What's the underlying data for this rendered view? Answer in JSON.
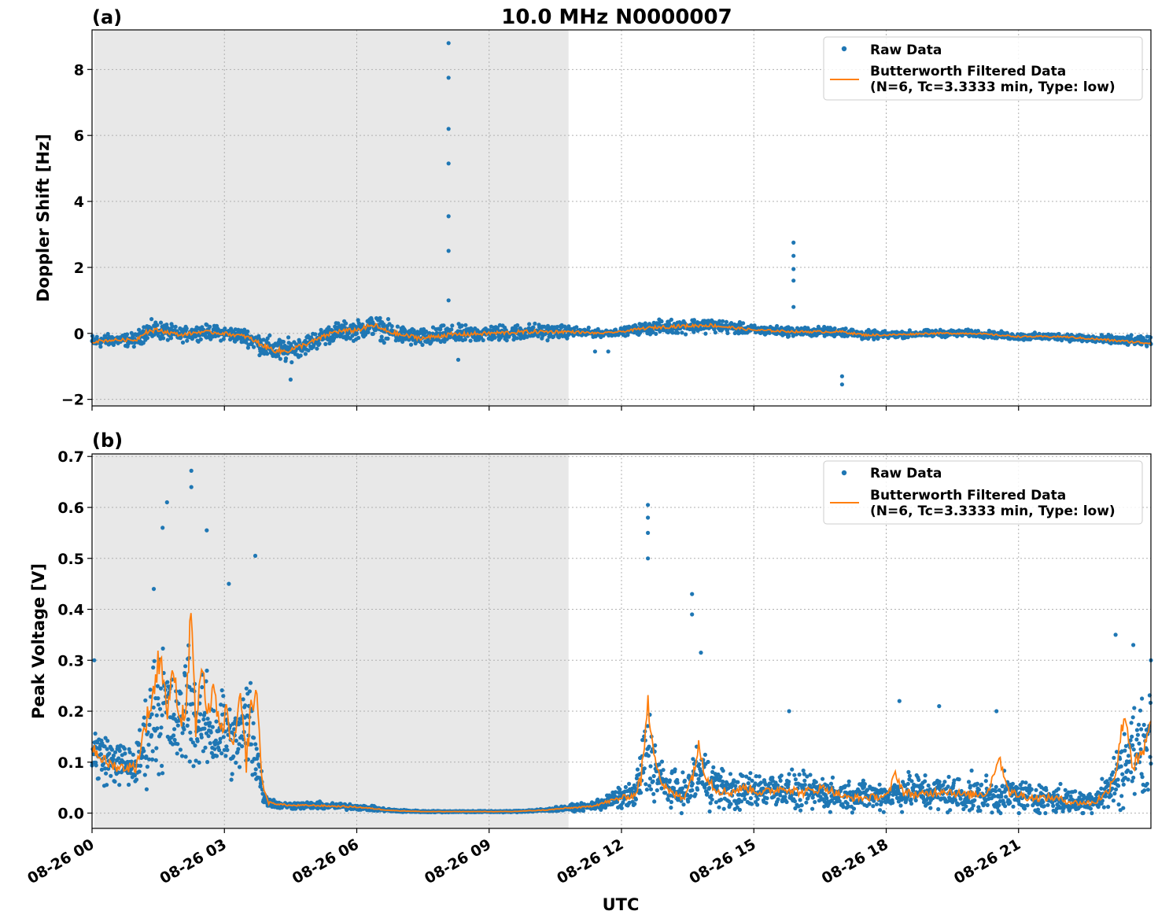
{
  "figure": {
    "title": "10.0 MHz N0000007",
    "xlabel": "UTC",
    "colors": {
      "raw": "#1f77b4",
      "filtered": "#ff7f0e",
      "night_shade": "#e8e8e8",
      "grid": "#b0b0b0"
    }
  },
  "chart_data": [
    {
      "type": "scatter",
      "panel_label": "(a)",
      "title": "10.0 MHz N0000007",
      "xlabel": "",
      "ylabel": "Doppler Shift [Hz]",
      "xlim_hours": [
        0,
        24
      ],
      "ylim": [
        -2.2,
        9.2
      ],
      "yticks": [
        -2,
        0,
        2,
        4,
        6,
        8
      ],
      "ytick_labels": [
        "−2",
        "0",
        "2",
        "4",
        "6",
        "8"
      ],
      "xticks_hours": [
        0,
        3,
        6,
        9,
        12,
        15,
        18,
        21
      ],
      "xtick_labels": [
        "08-26 00",
        "08-26 03",
        "08-26 06",
        "08-26 09",
        "08-26 12",
        "08-26 15",
        "08-26 18",
        "08-26 21"
      ],
      "grid": true,
      "shaded_region_hours": [
        0.05,
        10.8
      ],
      "legend": {
        "placement": "top-right",
        "entries": [
          "Raw Data",
          "Butterworth Filtered Data",
          "(N=6, Tc=3.3333 min, Type: low)"
        ]
      },
      "series": [
        {
          "name": "Raw Data",
          "kind": "scatter-band",
          "x_hours": [
            0,
            0.5,
            1,
            1.2,
            1.5,
            2,
            2.5,
            3,
            3.5,
            4,
            4.3,
            4.5,
            5,
            5.5,
            6,
            6.4,
            6.6,
            7,
            7.5,
            8,
            9,
            10,
            10.8,
            11.5,
            12,
            12.5,
            13,
            14,
            15,
            16,
            17,
            17.5,
            18,
            19,
            20,
            21,
            22,
            23,
            24
          ],
          "center": [
            -0.25,
            -0.2,
            -0.2,
            0.05,
            0.1,
            -0.05,
            0.05,
            0,
            -0.1,
            -0.45,
            -0.55,
            -0.5,
            -0.25,
            0.05,
            0.1,
            0.25,
            0.1,
            -0.05,
            -0.15,
            -0.05,
            0,
            0.05,
            0.05,
            0,
            0.05,
            0.15,
            0.2,
            0.25,
            0.1,
            0.05,
            0.05,
            -0.05,
            -0.05,
            0,
            0,
            -0.1,
            -0.1,
            -0.2,
            -0.25
          ],
          "spread": [
            0.3,
            0.25,
            0.3,
            0.4,
            0.4,
            0.3,
            0.3,
            0.3,
            0.35,
            0.5,
            0.55,
            0.45,
            0.4,
            0.4,
            0.4,
            0.45,
            0.45,
            0.4,
            0.4,
            0.4,
            0.35,
            0.35,
            0.25,
            0.15,
            0.15,
            0.25,
            0.3,
            0.3,
            0.2,
            0.2,
            0.2,
            0.2,
            0.15,
            0.15,
            0.15,
            0.15,
            0.15,
            0.2,
            0.2
          ],
          "outliers": [
            {
              "x": 8.08,
              "y": 8.8
            },
            {
              "x": 8.08,
              "y": 7.75
            },
            {
              "x": 8.08,
              "y": 6.2
            },
            {
              "x": 8.08,
              "y": 5.15
            },
            {
              "x": 8.08,
              "y": 3.55
            },
            {
              "x": 8.08,
              "y": 2.5
            },
            {
              "x": 8.08,
              "y": 1.0
            },
            {
              "x": 15.9,
              "y": 2.75
            },
            {
              "x": 15.9,
              "y": 2.35
            },
            {
              "x": 15.9,
              "y": 1.95
            },
            {
              "x": 15.9,
              "y": 1.6
            },
            {
              "x": 15.9,
              "y": 0.8
            },
            {
              "x": 17.0,
              "y": -1.3
            },
            {
              "x": 17.0,
              "y": -1.55
            },
            {
              "x": 4.5,
              "y": -1.4
            },
            {
              "x": 8.3,
              "y": -0.8
            },
            {
              "x": 11.4,
              "y": -0.55
            },
            {
              "x": 11.7,
              "y": -0.55
            }
          ]
        },
        {
          "name": "Butterworth Filtered Data",
          "kind": "line",
          "x_hours": [
            0,
            0.5,
            1,
            1.2,
            1.5,
            2,
            2.5,
            3,
            3.5,
            4,
            4.3,
            4.5,
            5,
            5.5,
            6,
            6.4,
            6.6,
            7,
            7.5,
            8,
            9,
            10,
            10.8,
            11.5,
            12,
            12.5,
            13,
            14,
            15,
            16,
            17,
            17.5,
            18,
            19,
            20,
            21,
            22,
            23,
            24
          ],
          "y": [
            -0.25,
            -0.2,
            -0.2,
            0.05,
            0.1,
            -0.05,
            0.05,
            0,
            -0.1,
            -0.45,
            -0.55,
            -0.5,
            -0.25,
            0.05,
            0.1,
            0.25,
            0.1,
            -0.05,
            -0.15,
            -0.05,
            0,
            0.05,
            0.05,
            0,
            0.05,
            0.15,
            0.2,
            0.25,
            0.1,
            0.05,
            0.05,
            -0.05,
            -0.05,
            0,
            0,
            -0.1,
            -0.1,
            -0.2,
            -0.3
          ]
        }
      ]
    },
    {
      "type": "scatter",
      "panel_label": "(b)",
      "title": "",
      "xlabel": "UTC",
      "ylabel": "Peak Voltage [V]",
      "xlim_hours": [
        0,
        24
      ],
      "ylim": [
        -0.03,
        0.705
      ],
      "yticks": [
        0.0,
        0.1,
        0.2,
        0.3,
        0.4,
        0.5,
        0.6,
        0.7
      ],
      "ytick_labels": [
        "0.0",
        "0.1",
        "0.2",
        "0.3",
        "0.4",
        "0.5",
        "0.6",
        "0.7"
      ],
      "xticks_hours": [
        0,
        3,
        6,
        9,
        12,
        15,
        18,
        21
      ],
      "xtick_labels": [
        "08-26 00",
        "08-26 03",
        "08-26 06",
        "08-26 09",
        "08-26 12",
        "08-26 15",
        "08-26 18",
        "08-26 21"
      ],
      "grid": true,
      "shaded_region_hours": [
        0.05,
        10.8
      ],
      "legend": {
        "placement": "top-right",
        "entries": [
          "Raw Data",
          "Butterworth Filtered Data",
          "(N=6, Tc=3.3333 min, Type: low)"
        ]
      },
      "series": [
        {
          "name": "Raw Data",
          "kind": "scatter-band",
          "x_hours": [
            0,
            0.5,
            1,
            1.2,
            1.4,
            1.6,
            1.8,
            2,
            2.2,
            2.4,
            2.6,
            2.8,
            3,
            3.2,
            3.4,
            3.6,
            3.75,
            3.9,
            4.2,
            5,
            6,
            6.8,
            7.5,
            8.5,
            9.5,
            10.3,
            10.8,
            11.2,
            11.6,
            12,
            12.3,
            12.5,
            12.6,
            12.8,
            13,
            13.5,
            13.7,
            13.9,
            14.2,
            14.6,
            15,
            15.5,
            16,
            16.5,
            17,
            18,
            18.5,
            19,
            20,
            21,
            21.5,
            22,
            22.5,
            23,
            23.3,
            23.6,
            24
          ],
          "center": [
            0.12,
            0.1,
            0.09,
            0.14,
            0.2,
            0.22,
            0.18,
            0.17,
            0.24,
            0.16,
            0.18,
            0.15,
            0.17,
            0.13,
            0.16,
            0.18,
            0.1,
            0.03,
            0.015,
            0.015,
            0.012,
            0.005,
            0.003,
            0.003,
            0.003,
            0.006,
            0.01,
            0.012,
            0.02,
            0.03,
            0.035,
            0.09,
            0.12,
            0.08,
            0.05,
            0.04,
            0.08,
            0.07,
            0.05,
            0.04,
            0.045,
            0.05,
            0.04,
            0.04,
            0.035,
            0.035,
            0.045,
            0.04,
            0.035,
            0.035,
            0.03,
            0.025,
            0.02,
            0.04,
            0.08,
            0.12,
            0.14
          ],
          "spread": [
            0.09,
            0.06,
            0.06,
            0.12,
            0.17,
            0.2,
            0.12,
            0.12,
            0.2,
            0.12,
            0.13,
            0.1,
            0.13,
            0.09,
            0.12,
            0.16,
            0.09,
            0.02,
            0.01,
            0.01,
            0.008,
            0.004,
            0.002,
            0.002,
            0.002,
            0.004,
            0.008,
            0.01,
            0.02,
            0.03,
            0.035,
            0.12,
            0.15,
            0.07,
            0.05,
            0.05,
            0.09,
            0.08,
            0.06,
            0.05,
            0.05,
            0.05,
            0.05,
            0.05,
            0.04,
            0.04,
            0.05,
            0.05,
            0.05,
            0.05,
            0.04,
            0.04,
            0.03,
            0.05,
            0.1,
            0.12,
            0.12
          ],
          "outliers": [
            {
              "x": 2.25,
              "y": 0.672
            },
            {
              "x": 2.25,
              "y": 0.64
            },
            {
              "x": 1.7,
              "y": 0.61
            },
            {
              "x": 1.6,
              "y": 0.56
            },
            {
              "x": 2.6,
              "y": 0.555
            },
            {
              "x": 3.7,
              "y": 0.505
            },
            {
              "x": 3.1,
              "y": 0.45
            },
            {
              "x": 1.4,
              "y": 0.44
            },
            {
              "x": 12.6,
              "y": 0.605
            },
            {
              "x": 12.6,
              "y": 0.58
            },
            {
              "x": 12.6,
              "y": 0.55
            },
            {
              "x": 12.6,
              "y": 0.5
            },
            {
              "x": 13.6,
              "y": 0.43
            },
            {
              "x": 13.6,
              "y": 0.39
            },
            {
              "x": 13.8,
              "y": 0.315
            },
            {
              "x": 23.2,
              "y": 0.35
            },
            {
              "x": 23.6,
              "y": 0.33
            },
            {
              "x": 24.0,
              "y": 0.3
            },
            {
              "x": 18.3,
              "y": 0.22
            },
            {
              "x": 19.2,
              "y": 0.21
            },
            {
              "x": 20.5,
              "y": 0.2
            },
            {
              "x": 15.8,
              "y": 0.2
            },
            {
              "x": 0.05,
              "y": 0.3
            }
          ]
        },
        {
          "name": "Butterworth Filtered Data",
          "kind": "line",
          "x_hours": [
            0,
            0.3,
            0.6,
            1.0,
            1.2,
            1.4,
            1.55,
            1.7,
            1.85,
            2.0,
            2.15,
            2.25,
            2.35,
            2.5,
            2.6,
            2.75,
            2.9,
            3.05,
            3.2,
            3.35,
            3.5,
            3.6,
            3.75,
            3.85,
            4.0,
            4.5,
            5,
            6,
            6.8,
            7.5,
            8.5,
            9.5,
            10.3,
            10.8,
            11.2,
            11.6,
            12,
            12.3,
            12.45,
            12.6,
            12.75,
            12.9,
            13.1,
            13.4,
            13.6,
            13.75,
            13.9,
            14.1,
            14.4,
            14.8,
            15.2,
            15.7,
            16.1,
            16.6,
            17.1,
            17.6,
            18.05,
            18.2,
            18.4,
            18.8,
            19.3,
            19.8,
            20.3,
            20.55,
            20.8,
            21.3,
            21.8,
            22.3,
            22.7,
            23.0,
            23.2,
            23.4,
            23.6,
            23.8,
            24
          ],
          "y": [
            0.13,
            0.1,
            0.09,
            0.09,
            0.17,
            0.24,
            0.32,
            0.2,
            0.28,
            0.18,
            0.22,
            0.42,
            0.16,
            0.3,
            0.17,
            0.26,
            0.15,
            0.2,
            0.12,
            0.23,
            0.1,
            0.21,
            0.23,
            0.06,
            0.02,
            0.015,
            0.015,
            0.012,
            0.005,
            0.003,
            0.003,
            0.003,
            0.006,
            0.01,
            0.012,
            0.02,
            0.03,
            0.035,
            0.07,
            0.21,
            0.12,
            0.06,
            0.04,
            0.03,
            0.07,
            0.13,
            0.08,
            0.05,
            0.04,
            0.05,
            0.04,
            0.05,
            0.04,
            0.05,
            0.03,
            0.03,
            0.035,
            0.08,
            0.04,
            0.035,
            0.045,
            0.035,
            0.04,
            0.11,
            0.04,
            0.03,
            0.03,
            0.02,
            0.02,
            0.04,
            0.08,
            0.2,
            0.09,
            0.11,
            0.17
          ]
        }
      ]
    }
  ]
}
